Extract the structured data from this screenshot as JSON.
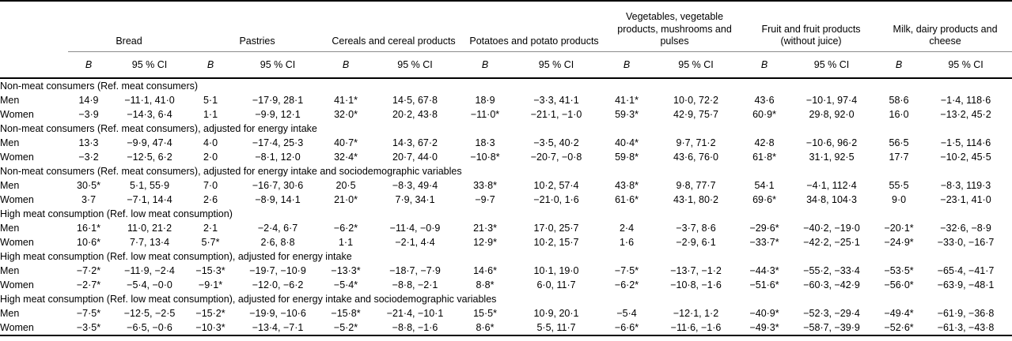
{
  "colors": {
    "background": "#ffffff",
    "text": "#000000",
    "heavy_rule": "#000000",
    "group_underline": "#8c8c8c"
  },
  "table": {
    "groups": [
      {
        "label": "Bread"
      },
      {
        "label": "Pastries"
      },
      {
        "label": "Cereals and cereal products"
      },
      {
        "label": "Potatoes and potato products"
      },
      {
        "label": "Vegetables, vegetable products, mushrooms and pulses"
      },
      {
        "label": "Fruit and fruit products (without juice)"
      },
      {
        "label": "Milk, dairy products and cheese"
      }
    ],
    "subheaders": {
      "b_label": "B",
      "ci_label": "95 % CI"
    },
    "sections": [
      {
        "label": "Non-meat consumers (Ref. meat consumers)",
        "rows": [
          {
            "label": "Men",
            "cells": [
              "14·9",
              "−11·1, 41·0",
              "5·1",
              "−17·9, 28·1",
              "41·1*",
              "14·5, 67·8",
              "18·9",
              "−3·3, 41·1",
              "41·1*",
              "10·0, 72·2",
              "43·6",
              "−10·1, 97·4",
              "58·6",
              "−1·4, 118·6"
            ]
          },
          {
            "label": "Women",
            "cells": [
              "−3·9",
              "−14·3, 6·4",
              "1·1",
              "−9·9, 12·1",
              "32·0*",
              "20·2, 43·8",
              "−11·0*",
              "−21·1, −1·0",
              "59·3*",
              "42·9, 75·7",
              "60·9*",
              "29·8, 92·0",
              "16·0",
              "−13·2, 45·2"
            ]
          }
        ]
      },
      {
        "label": "Non-meat consumers (Ref. meat consumers), adjusted for energy intake",
        "rows": [
          {
            "label": "Men",
            "cells": [
              "13·3",
              "−9·9, 47·4",
              "4·0",
              "−17·4, 25·3",
              "40·7*",
              "14·3, 67·2",
              "18·3",
              "−3·5, 40·2",
              "40·4*",
              "9·7, 71·2",
              "42·8",
              "−10·6, 96·2",
              "56·5",
              "−1·5, 114·6"
            ]
          },
          {
            "label": "Women",
            "cells": [
              "−3·2",
              "−12·5, 6·2",
              "2·0",
              "−8·1, 12·0",
              "32·4*",
              "20·7, 44·0",
              "−10·8*",
              "−20·7, −0·8",
              "59·8*",
              "43·6, 76·0",
              "61·8*",
              "31·1, 92·5",
              "17·7",
              "−10·2, 45·5"
            ]
          }
        ]
      },
      {
        "label": "Non-meat consumers (Ref. meat consumers), adjusted for energy intake and sociodemographic variables",
        "rows": [
          {
            "label": "Men",
            "cells": [
              "30·5*",
              "5·1, 55·9",
              "7·0",
              "−16·7, 30·6",
              "20·5",
              "−8·3, 49·4",
              "33·8*",
              "10·2, 57·4",
              "43·8*",
              "9·8, 77·7",
              "54·1",
              "−4·1, 112·4",
              "55·5",
              "−8·3, 119·3"
            ]
          },
          {
            "label": "Women",
            "cells": [
              "3·7",
              "−7·1, 14·4",
              "2·6",
              "−8·9, 14·1",
              "21·0*",
              "7·9, 34·1",
              "−9·7",
              "−21·0, 1·6",
              "61·6*",
              "43·1, 80·2",
              "69·6*",
              "34·8, 104·3",
              "9·0",
              "−23·1, 41·0"
            ]
          }
        ]
      },
      {
        "label": "High meat consumption (Ref. low meat consumption)",
        "rows": [
          {
            "label": "Men",
            "cells": [
              "16·1*",
              "11·0, 21·2",
              "2·1",
              "−2·4, 6·7",
              "−6·2*",
              "−11·4, −0·9",
              "21·3*",
              "17·0, 25·7",
              "2·4",
              "−3·7, 8·6",
              "−29·6*",
              "−40·2, −19·0",
              "−20·1*",
              "−32·6, −8·9"
            ]
          },
          {
            "label": "Women",
            "cells": [
              "10·6*",
              "7·7, 13·4",
              "5·7*",
              "2·6, 8·8",
              "1·1",
              "−2·1, 4·4",
              "12·9*",
              "10·2, 15·7",
              "1·6",
              "−2·9, 6·1",
              "−33·7*",
              "−42·2, −25·1",
              "−24·9*",
              "−33·0, −16·7"
            ]
          }
        ]
      },
      {
        "label": "High meat consumption (Ref. low meat consumption), adjusted for energy intake",
        "rows": [
          {
            "label": "Men",
            "cells": [
              "−7·2*",
              "−11·9, −2·4",
              "−15·3*",
              "−19·7, −10·9",
              "−13·3*",
              "−18·7, −7·9",
              "14·6*",
              "10·1, 19·0",
              "−7·5*",
              "−13·7, −1·2",
              "−44·3*",
              "−55·2, −33·4",
              "−53·5*",
              "−65·4, −41·7"
            ]
          },
          {
            "label": "Women",
            "cells": [
              "−2·7*",
              "−5·4, −0·0",
              "−9·1*",
              "−12·0, −6·2",
              "−5·4*",
              "−8·8, −2·1",
              "8·8*",
              "6·0, 11·7",
              "−6·2*",
              "−10·8, −1·6",
              "−51·6*",
              "−60·3, −42·9",
              "−56·0*",
              "−63·9, −48·1"
            ]
          }
        ]
      },
      {
        "label": "High meat consumption (Ref. low meat consumption), adjusted for energy intake and sociodemographic variables",
        "rows": [
          {
            "label": "Men",
            "cells": [
              "−7·5*",
              "−12·5, −2·5",
              "−15·2*",
              "−19·9, −10·6",
              "−15·8*",
              "−21·4, −10·1",
              "15·5*",
              "10·9, 20·1",
              "−5·4",
              "−12·1, 1·2",
              "−40·9*",
              "−52·3, −29·4",
              "−49·4*",
              "−61·9, −36·8"
            ]
          },
          {
            "label": "Women",
            "cells": [
              "−3·5*",
              "−6·5, −0·6",
              "−10·3*",
              "−13·4, −7·1",
              "−5·2*",
              "−8·8, −1·6",
              "8·6*",
              "5·5, 11·7",
              "−6·6*",
              "−11·6, −1·6",
              "−49·3*",
              "−58·7, −39·9",
              "−52·6*",
              "−61·3, −43·8"
            ]
          }
        ]
      }
    ]
  }
}
